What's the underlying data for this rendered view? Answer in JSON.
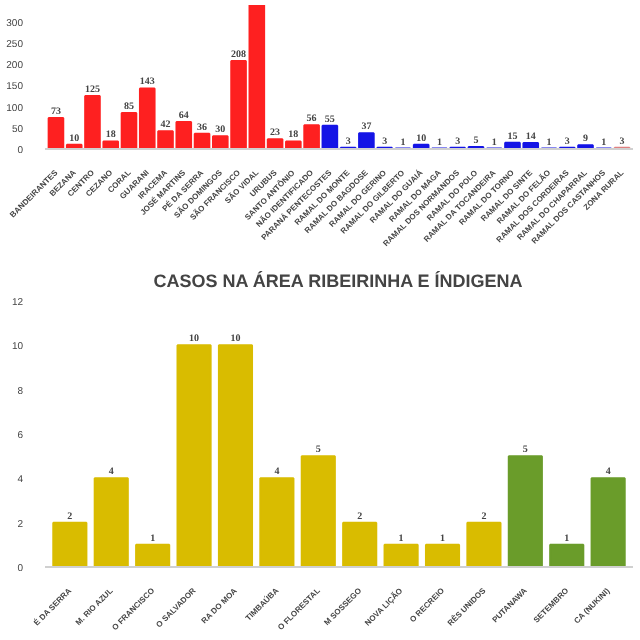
{
  "chart_data": [
    {
      "type": "bar",
      "categories": [
        "BANDEIRANTES",
        "BEZANA",
        "CENTRO",
        "CEZANO",
        "CORAL",
        "GUARANI",
        "IRACEMA",
        "JOSÉ MARTINS",
        "PÉ DA SERRA",
        "SÃO DOMINGOS",
        "SÃO FRANCISCO",
        "SÃO VIDAL",
        "URUBUS",
        "SANTO ANTÔNIO",
        "NÃO IDENTIFICADO",
        "PARANÁ PENTECOSTES",
        "RAMAL DO MONTE",
        "RAMAL DO BAGDOSE",
        "RAMAL DO GERINO",
        "RAMAL DO GILBERTO",
        "RAMAL DO GUAIÁ",
        "RAMAL DO MAGA",
        "RAMAL DOS NORMANDOS",
        "RAMAL DO POLO",
        "RAMAL DA TOCANDEIRA",
        "RAMAL DO TORNO",
        "RAMAL DO SINTE",
        "RAMAL DO FELÃO",
        "RAMAL DOS CORDEIRAS",
        "RAMAL DO CHAPARRAL",
        "RAMAL DOS CASTANHOS",
        "ZONA RURAL"
      ],
      "values": [
        73,
        10,
        125,
        18,
        85,
        143,
        42,
        64,
        36,
        30,
        208,
        340,
        23,
        18,
        56,
        55,
        3,
        37,
        3,
        1,
        10,
        1,
        3,
        5,
        1,
        15,
        14,
        1,
        3,
        9,
        1,
        3
      ],
      "value_labels": [
        "73",
        "10",
        "125",
        "18",
        "85",
        "143",
        "42",
        "64",
        "36",
        "30",
        "208",
        null,
        "23",
        "18",
        "56",
        "55",
        "3",
        "37",
        "3",
        "1",
        "10",
        "1",
        "3",
        "5",
        "1",
        "15",
        "14",
        "1",
        "3",
        "9",
        "1",
        "3"
      ],
      "colors": [
        "#fe2020",
        "#fe2020",
        "#fe2020",
        "#fe2020",
        "#fe2020",
        "#fe2020",
        "#fe2020",
        "#fe2020",
        "#fe2020",
        "#fe2020",
        "#fe2020",
        "#fe2020",
        "#fe2020",
        "#fe2020",
        "#fe2020",
        "#1414e6",
        "#1414e6",
        "#1414e6",
        "#1414e6",
        "#1414e6",
        "#1414e6",
        "#1414e6",
        "#1414e6",
        "#1414e6",
        "#1414e6",
        "#1414e6",
        "#1414e6",
        "#1414e6",
        "#1414e6",
        "#1414e6",
        "#1414e6",
        "#e08080"
      ],
      "ylim": [
        0,
        340
      ],
      "yticks": [
        0,
        50,
        100,
        150,
        200,
        250,
        300
      ]
    },
    {
      "type": "bar",
      "title": "CASOS NA ÁREA RIBEIRINHA E ÍNDIGENA",
      "categories": [
        "É DA SERRA",
        "M. RIO AZUL",
        "O FRANCISCO",
        "O SALVADOR",
        "RA DO MOA",
        "TIMBAÚBA",
        "O FLORESTAL",
        "M SOSSEGO",
        "NOVA LIÇÃO",
        "O RECREIO",
        "RÊS UNIDOS",
        "PUTANAWA",
        "SETEMBRO",
        "CA (NUKINI)"
      ],
      "values": [
        2,
        4,
        1,
        10,
        10,
        4,
        5,
        2,
        1,
        1,
        2,
        5,
        1,
        4
      ],
      "colors": [
        "#d9bc00",
        "#d9bc00",
        "#d9bc00",
        "#d9bc00",
        "#d9bc00",
        "#d9bc00",
        "#d9bc00",
        "#d9bc00",
        "#d9bc00",
        "#d9bc00",
        "#d9bc00",
        "#6a9c2a",
        "#6a9c2a",
        "#6a9c2a"
      ],
      "data_labels": true,
      "ylim": [
        0,
        12
      ],
      "yticks": [
        0,
        2,
        4,
        6,
        8,
        10,
        12
      ]
    }
  ]
}
